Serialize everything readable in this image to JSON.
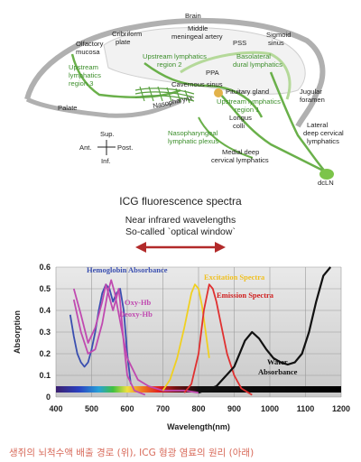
{
  "anatomy": {
    "labels": {
      "brain": "Brain",
      "middle_meningeal_1": "Middle",
      "middle_meningeal_2": "meningeal artery",
      "cribriform_1": "Cribriform",
      "cribriform_2": "plate",
      "olfactory_1": "Olfactory",
      "olfactory_2": "mucosa",
      "pss": "PSS",
      "sigmoid_1": "Sigmoid",
      "sigmoid_2": "sinus",
      "ppa": "PPA",
      "cavernous": "Cavernous sinus",
      "pituitary": "Pituitary gland",
      "nasopharynx": "Nasopharynx",
      "palate": "Palate",
      "longus_1": "Longus",
      "longus_2": "colli",
      "jugular_1": "Jugular",
      "jugular_2": "foramen",
      "lateral_1": "Lateral",
      "lateral_2": "deep cervical",
      "lateral_3": "lymphatics",
      "medial_1": "Medial deep",
      "medial_2": "cervical lymphatics",
      "dcln": "dcLN",
      "compass_sup": "Sup.",
      "compass_inf": "Inf.",
      "compass_ant": "Ant.",
      "compass_post": "Post."
    },
    "green_labels": {
      "upstream2_1": "Upstream lymphatics",
      "upstream2_2": "region 2",
      "upstream3_1": "Upstream",
      "upstream3_2": "lymphatics",
      "upstream3_3": "region 3",
      "basolateral_1": "Basolateral",
      "basolateral_2": "dural lymphatics",
      "upstream1_1": "Upstream lymphatics",
      "upstream1_2": "region 1",
      "plexus_1": "Nasopharyngeal",
      "plexus_2": "lymphatic plexus"
    }
  },
  "spectra": {
    "title": "ICG fluorescence spectra",
    "window_line1": "Near infrared wavelengths",
    "window_line2": "So-called `optical window`"
  },
  "chart_data": {
    "type": "line",
    "xlabel": "Wavelength(nm)",
    "ylabel": "Absorption",
    "xlim": [
      400,
      1200
    ],
    "ylim": [
      0,
      0.6
    ],
    "x_ticks": [
      "400",
      "500",
      "600",
      "700",
      "800",
      "900",
      "1000",
      "1100",
      "1200"
    ],
    "y_ticks": [
      "0",
      "0.1",
      "0.2",
      "0.3",
      "0.4",
      "0.5",
      "0.6"
    ],
    "grid": true,
    "series": [
      {
        "name": "Hemoglobin Absorbance",
        "color": "#3a4fb0",
        "x": [
          440,
          450,
          460,
          470,
          480,
          490,
          500,
          510,
          520,
          530,
          540,
          550,
          560,
          570,
          580,
          590,
          600,
          610
        ],
        "y": [
          0.38,
          0.28,
          0.2,
          0.16,
          0.14,
          0.16,
          0.22,
          0.3,
          0.4,
          0.48,
          0.52,
          0.5,
          0.44,
          0.48,
          0.5,
          0.4,
          0.2,
          0.06
        ]
      },
      {
        "name": "Oxy-Hb",
        "color": "#c04ab0",
        "x": [
          450,
          470,
          490,
          510,
          530,
          540,
          550,
          560,
          570,
          576,
          580,
          590,
          600,
          620,
          650
        ],
        "y": [
          0.5,
          0.38,
          0.25,
          0.32,
          0.44,
          0.52,
          0.46,
          0.4,
          0.46,
          0.5,
          0.44,
          0.25,
          0.1,
          0.03,
          0.01
        ]
      },
      {
        "name": "Deoxy-Hb",
        "color": "#c04ab0",
        "x": [
          450,
          470,
          490,
          510,
          530,
          545,
          555,
          565,
          580,
          600,
          630,
          660,
          700,
          760,
          800
        ],
        "y": [
          0.45,
          0.3,
          0.2,
          0.22,
          0.34,
          0.48,
          0.54,
          0.48,
          0.35,
          0.18,
          0.08,
          0.05,
          0.03,
          0.03,
          0.02
        ]
      },
      {
        "name": "Excitation Spectra",
        "color": "#f0d020",
        "x": [
          700,
          720,
          740,
          760,
          780,
          790,
          800,
          810,
          820,
          830
        ],
        "y": [
          0.03,
          0.08,
          0.18,
          0.32,
          0.48,
          0.52,
          0.5,
          0.42,
          0.3,
          0.18
        ]
      },
      {
        "name": "Emission Spectra",
        "color": "#e03030",
        "x": [
          760,
          780,
          800,
          815,
          830,
          840,
          850,
          860,
          880,
          900,
          920,
          950
        ],
        "y": [
          0.02,
          0.06,
          0.2,
          0.4,
          0.52,
          0.5,
          0.44,
          0.36,
          0.2,
          0.1,
          0.04,
          0.01
        ]
      },
      {
        "name": "Water Absorbance",
        "color": "#111111",
        "x": [
          800,
          850,
          900,
          930,
          950,
          970,
          990,
          1010,
          1030,
          1050,
          1070,
          1090,
          1110,
          1130,
          1150,
          1170
        ],
        "y": [
          0.02,
          0.05,
          0.14,
          0.26,
          0.3,
          0.27,
          0.22,
          0.18,
          0.16,
          0.15,
          0.16,
          0.2,
          0.3,
          0.44,
          0.56,
          0.6
        ]
      }
    ]
  },
  "series_labels": {
    "hemoglobin": "Hemoglobin Absorbance",
    "oxy": "Oxy-Hb",
    "deoxy": "Deoxy-Hb",
    "excitation": "Excitation Spectra",
    "emission": "Emission Spectra",
    "water_1": "Water",
    "water_2": "Absorbance"
  },
  "caption": "생쥐의 뇌척수액 배출 경로 (위), ICG 형광 염료의 원리 (아래)"
}
